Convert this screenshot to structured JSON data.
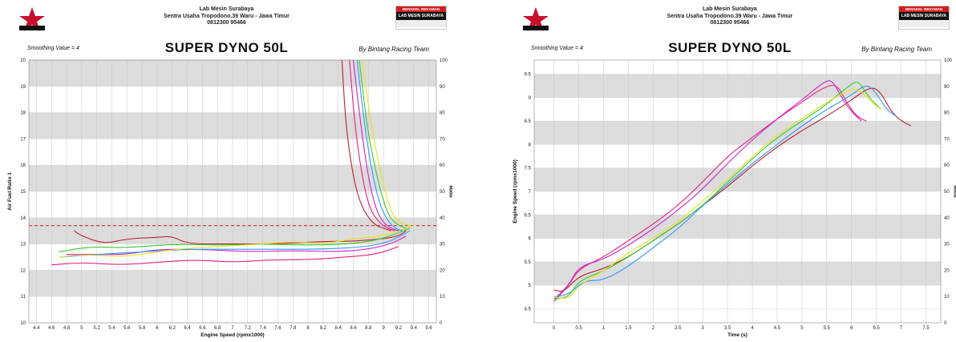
{
  "header": {
    "line1": "Lab Mesin Surabaya",
    "line2": "Sentra Usaha Tropodono.39 Waru - Jawa Timur",
    "line3": "0812300 95466",
    "badge_top": "BENGKEL REKAMAN",
    "badge_main": "LAB MESIN SURABAYA"
  },
  "title": "SUPER DYNO 50L",
  "smoothing": "Smoothing Value = 4",
  "by": "By Bintang Racing Team",
  "colors": {
    "band": "#dcdcdc",
    "ref_line": "#e23b3b"
  },
  "chart_data": [
    {
      "type": "line",
      "xlabel": "Engine Speed (rpmx1000)",
      "ylabel": "Air Fuel Ratio 1",
      "y2label": "none",
      "xlim": [
        4.3,
        9.7
      ],
      "ylim": [
        10,
        20
      ],
      "y2lim": [
        0,
        100
      ],
      "xticks": [
        4.4,
        4.6,
        4.8,
        5,
        5.2,
        5.4,
        5.6,
        5.8,
        6,
        6.2,
        6.4,
        6.6,
        6.8,
        7,
        7.2,
        7.4,
        7.6,
        7.8,
        8,
        8.2,
        8.4,
        8.6,
        8.8,
        9,
        9.2,
        9.4,
        9.6
      ],
      "yticks": [
        10,
        11,
        12,
        13,
        14,
        15,
        16,
        17,
        18,
        19,
        20
      ],
      "y2ticks": [
        0,
        10,
        20,
        30,
        40,
        50,
        60,
        70,
        80,
        90,
        100
      ],
      "reference_line": 13.7,
      "series": [
        {
          "color": "#c0202a",
          "points": [
            [
              4.9,
              13.5
            ],
            [
              5.0,
              13.3
            ],
            [
              5.3,
              13.0
            ],
            [
              5.6,
              13.2
            ],
            [
              6.0,
              13.25
            ],
            [
              6.2,
              13.3
            ],
            [
              6.4,
              13.0
            ],
            [
              7.0,
              13.0
            ],
            [
              7.6,
              13.0
            ],
            [
              8.2,
              13.1
            ],
            [
              8.6,
              13.1
            ],
            [
              9.0,
              13.2
            ],
            [
              9.2,
              13.3
            ],
            [
              9.3,
              13.5
            ]
          ]
        },
        {
          "color": "#e8207e",
          "points": [
            [
              4.6,
              12.2
            ],
            [
              5.0,
              12.3
            ],
            [
              5.5,
              12.2
            ],
            [
              6.0,
              12.3
            ],
            [
              6.5,
              12.4
            ],
            [
              7.0,
              12.3
            ],
            [
              7.5,
              12.4
            ],
            [
              8.0,
              12.4
            ],
            [
              8.5,
              12.5
            ],
            [
              8.9,
              12.6
            ],
            [
              9.2,
              12.9
            ]
          ]
        },
        {
          "color": "#cc22cc",
          "points": [
            [
              4.8,
              12.6
            ],
            [
              5.2,
              12.6
            ],
            [
              5.6,
              12.6
            ],
            [
              6.0,
              12.8
            ],
            [
              6.6,
              12.8
            ],
            [
              7.2,
              12.7
            ],
            [
              7.8,
              12.75
            ],
            [
              8.4,
              12.7
            ],
            [
              8.8,
              12.8
            ],
            [
              9.1,
              13.0
            ],
            [
              9.3,
              13.3
            ]
          ]
        },
        {
          "color": "#3399ff",
          "points": [
            [
              4.7,
              12.5
            ],
            [
              5.2,
              12.6
            ],
            [
              5.8,
              12.7
            ],
            [
              6.4,
              12.8
            ],
            [
              7.0,
              12.8
            ],
            [
              7.6,
              12.8
            ],
            [
              8.2,
              12.8
            ],
            [
              8.8,
              12.9
            ],
            [
              9.1,
              13.1
            ],
            [
              9.35,
              13.5
            ]
          ]
        },
        {
          "color": "#33cc33",
          "points": [
            [
              4.7,
              12.7
            ],
            [
              5.1,
              12.9
            ],
            [
              5.6,
              12.85
            ],
            [
              6.2,
              13.0
            ],
            [
              6.8,
              12.95
            ],
            [
              7.4,
              13.0
            ],
            [
              8.0,
              12.95
            ],
            [
              8.6,
              13.0
            ],
            [
              9.0,
              13.2
            ],
            [
              9.35,
              13.6
            ]
          ]
        },
        {
          "color": "#e8e020",
          "points": [
            [
              4.7,
              12.5
            ],
            [
              5.0,
              12.6
            ],
            [
              5.6,
              12.5
            ],
            [
              6.2,
              12.8
            ],
            [
              6.8,
              12.9
            ],
            [
              7.4,
              13.0
            ],
            [
              7.8,
              13.1
            ],
            [
              8.2,
              13.0
            ],
            [
              8.6,
              13.2
            ],
            [
              9.0,
              13.3
            ],
            [
              9.4,
              13.7
            ]
          ]
        },
        {
          "color": "#c0202a",
          "points": [
            [
              8.45,
              20
            ],
            [
              8.5,
              17.5
            ],
            [
              8.6,
              15.5
            ],
            [
              8.7,
              14.5
            ],
            [
              8.8,
              14.0
            ],
            [
              8.9,
              13.7
            ],
            [
              9.0,
              13.6
            ],
            [
              9.1,
              13.5
            ]
          ]
        },
        {
          "color": "#e8207e",
          "points": [
            [
              8.55,
              20
            ],
            [
              8.62,
              17.5
            ],
            [
              8.72,
              15.5
            ],
            [
              8.82,
              14.3
            ],
            [
              8.95,
              13.8
            ],
            [
              9.05,
              13.6
            ],
            [
              9.15,
              13.5
            ]
          ]
        },
        {
          "color": "#cc22cc",
          "points": [
            [
              8.6,
              20
            ],
            [
              8.7,
              17.5
            ],
            [
              8.8,
              15.5
            ],
            [
              8.9,
              14.3
            ],
            [
              9.0,
              13.8
            ],
            [
              9.1,
              13.6
            ],
            [
              9.2,
              13.5
            ]
          ]
        },
        {
          "color": "#3399ff",
          "points": [
            [
              8.65,
              20
            ],
            [
              8.75,
              17.5
            ],
            [
              8.85,
              15.7
            ],
            [
              8.95,
              14.5
            ],
            [
              9.05,
              13.9
            ],
            [
              9.15,
              13.6
            ],
            [
              9.25,
              13.5
            ]
          ]
        },
        {
          "color": "#33cc33",
          "points": [
            [
              8.68,
              20
            ],
            [
              8.78,
              17.5
            ],
            [
              8.88,
              16.0
            ],
            [
              8.98,
              14.8
            ],
            [
              9.08,
              14.0
            ],
            [
              9.2,
              13.7
            ],
            [
              9.3,
              13.6
            ]
          ]
        },
        {
          "color": "#e8e020",
          "points": [
            [
              8.72,
              20
            ],
            [
              8.82,
              17.8
            ],
            [
              8.92,
              16.3
            ],
            [
              9.02,
              15.0
            ],
            [
              9.12,
              14.1
            ],
            [
              9.22,
              13.8
            ],
            [
              9.35,
              13.7
            ]
          ]
        }
      ]
    },
    {
      "type": "line",
      "xlabel": "Time (s)",
      "ylabel": "Engine Speed (rpmx1000)",
      "y2label": "none",
      "xlim": [
        -0.4,
        7.8
      ],
      "ylim": [
        4.2,
        9.8
      ],
      "y2lim": [
        0,
        100
      ],
      "xticks": [
        0,
        0.5,
        1,
        1.5,
        2,
        2.5,
        3,
        3.5,
        4,
        4.5,
        5,
        5.5,
        6,
        6.5,
        7,
        7.5
      ],
      "yticks": [
        4.5,
        5,
        5.5,
        6,
        6.5,
        7,
        7.5,
        8,
        8.5,
        9,
        9.5
      ],
      "y2ticks": [
        0,
        10,
        20,
        30,
        40,
        50,
        60,
        70,
        80,
        90,
        100
      ],
      "series": [
        {
          "color": "#c0202a",
          "points": [
            [
              0.0,
              4.9
            ],
            [
              0.2,
              4.85
            ],
            [
              0.5,
              5.2
            ],
            [
              1.0,
              5.35
            ],
            [
              1.5,
              5.6
            ],
            [
              2.0,
              5.95
            ],
            [
              2.5,
              6.3
            ],
            [
              3.0,
              6.7
            ],
            [
              3.5,
              7.1
            ],
            [
              4.0,
              7.55
            ],
            [
              4.5,
              7.95
            ],
            [
              5.0,
              8.3
            ],
            [
              5.5,
              8.6
            ],
            [
              6.0,
              8.95
            ],
            [
              6.4,
              9.25
            ],
            [
              6.6,
              9.1
            ],
            [
              6.8,
              8.7
            ],
            [
              7.0,
              8.5
            ],
            [
              7.2,
              8.4
            ]
          ]
        },
        {
          "color": "#e8207e",
          "points": [
            [
              0.0,
              4.65
            ],
            [
              0.3,
              5.0
            ],
            [
              0.5,
              5.35
            ],
            [
              1.0,
              5.6
            ],
            [
              1.5,
              5.95
            ],
            [
              2.0,
              6.3
            ],
            [
              2.5,
              6.7
            ],
            [
              3.0,
              7.2
            ],
            [
              3.5,
              7.75
            ],
            [
              4.0,
              8.15
            ],
            [
              4.5,
              8.55
            ],
            [
              5.0,
              8.9
            ],
            [
              5.4,
              9.2
            ],
            [
              5.7,
              9.3
            ],
            [
              5.9,
              8.9
            ],
            [
              6.1,
              8.6
            ],
            [
              6.3,
              8.5
            ]
          ]
        },
        {
          "color": "#cc22cc",
          "points": [
            [
              0.0,
              4.7
            ],
            [
              0.3,
              5.0
            ],
            [
              0.5,
              5.4
            ],
            [
              1.0,
              5.55
            ],
            [
              1.5,
              5.85
            ],
            [
              2.0,
              6.2
            ],
            [
              2.5,
              6.6
            ],
            [
              3.0,
              7.05
            ],
            [
              3.5,
              7.6
            ],
            [
              4.0,
              8.1
            ],
            [
              4.5,
              8.55
            ],
            [
              5.0,
              8.95
            ],
            [
              5.4,
              9.3
            ],
            [
              5.6,
              9.4
            ],
            [
              5.8,
              9.0
            ],
            [
              6.0,
              8.7
            ],
            [
              6.2,
              8.5
            ]
          ]
        },
        {
          "color": "#3399ff",
          "points": [
            [
              0.0,
              4.75
            ],
            [
              0.3,
              4.8
            ],
            [
              0.6,
              5.1
            ],
            [
              1.0,
              5.1
            ],
            [
              1.5,
              5.4
            ],
            [
              2.0,
              5.8
            ],
            [
              2.5,
              6.2
            ],
            [
              3.0,
              6.7
            ],
            [
              3.5,
              7.15
            ],
            [
              4.0,
              7.6
            ],
            [
              4.5,
              8.0
            ],
            [
              5.0,
              8.4
            ],
            [
              5.5,
              8.75
            ],
            [
              6.0,
              9.05
            ],
            [
              6.3,
              9.3
            ],
            [
              6.5,
              9.1
            ],
            [
              6.7,
              8.75
            ],
            [
              6.9,
              8.6
            ]
          ]
        },
        {
          "color": "#33cc33",
          "points": [
            [
              0.0,
              4.7
            ],
            [
              0.3,
              4.75
            ],
            [
              0.5,
              5.1
            ],
            [
              1.0,
              5.3
            ],
            [
              1.5,
              5.6
            ],
            [
              2.0,
              5.95
            ],
            [
              2.5,
              6.3
            ],
            [
              3.0,
              6.7
            ],
            [
              3.5,
              7.2
            ],
            [
              4.0,
              7.7
            ],
            [
              4.5,
              8.15
            ],
            [
              5.0,
              8.5
            ],
            [
              5.5,
              8.85
            ],
            [
              6.0,
              9.3
            ],
            [
              6.15,
              9.35
            ],
            [
              6.35,
              9.0
            ],
            [
              6.6,
              8.75
            ]
          ]
        },
        {
          "color": "#e8e020",
          "points": [
            [
              0.0,
              4.75
            ],
            [
              0.3,
              4.7
            ],
            [
              0.5,
              5.0
            ],
            [
              1.0,
              5.3
            ],
            [
              1.5,
              5.7
            ],
            [
              2.0,
              6.0
            ],
            [
              2.5,
              6.35
            ],
            [
              3.0,
              6.8
            ],
            [
              3.5,
              7.25
            ],
            [
              4.0,
              7.75
            ],
            [
              4.5,
              8.2
            ],
            [
              5.0,
              8.55
            ],
            [
              5.5,
              8.9
            ],
            [
              6.0,
              9.2
            ],
            [
              6.2,
              9.15
            ],
            [
              6.4,
              8.9
            ],
            [
              6.6,
              8.75
            ]
          ]
        }
      ]
    }
  ]
}
